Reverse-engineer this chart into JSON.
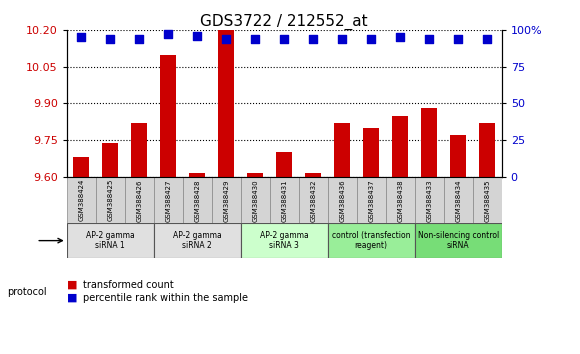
{
  "title": "GDS3722 / 212552_at",
  "samples": [
    "GSM388424",
    "GSM388425",
    "GSM388426",
    "GSM388427",
    "GSM388428",
    "GSM388429",
    "GSM388430",
    "GSM388431",
    "GSM388432",
    "GSM388436",
    "GSM388437",
    "GSM388438",
    "GSM388433",
    "GSM388434",
    "GSM388435"
  ],
  "transformed_count": [
    9.68,
    9.74,
    9.82,
    10.1,
    9.615,
    10.2,
    9.615,
    9.7,
    9.615,
    9.82,
    9.8,
    9.85,
    9.88,
    9.77,
    9.82
  ],
  "percentile_rank": [
    95,
    94,
    94,
    97,
    96,
    94,
    94,
    94,
    94,
    94,
    94,
    95,
    94,
    94,
    94
  ],
  "ylim_left": [
    9.6,
    10.2
  ],
  "ylim_right": [
    0,
    100
  ],
  "yticks_left": [
    9.6,
    9.75,
    9.9,
    10.05,
    10.2
  ],
  "yticks_right": [
    0,
    25,
    50,
    75,
    100
  ],
  "bar_color": "#cc0000",
  "dot_color": "#0000cc",
  "groups": [
    {
      "label": "AP-2 gamma\nsiRNA 1",
      "indices": [
        0,
        1,
        2
      ],
      "bg": "#e0e0e0"
    },
    {
      "label": "AP-2 gamma\nsiRNA 2",
      "indices": [
        3,
        4,
        5
      ],
      "bg": "#e0e0e0"
    },
    {
      "label": "AP-2 gamma\nsiRNA 3",
      "indices": [
        6,
        7,
        8
      ],
      "bg": "#ccffcc"
    },
    {
      "label": "control (transfection\nreagent)",
      "indices": [
        9,
        10,
        11
      ],
      "bg": "#99ee99"
    },
    {
      "label": "Non-silencing control\nsiRNA",
      "indices": [
        12,
        13,
        14
      ],
      "bg": "#77dd77"
    }
  ],
  "protocol_label": "protocol",
  "legend_bar_label": "transformed count",
  "legend_dot_label": "percentile rank within the sample",
  "bg_color": "#ffffff",
  "left_axis_color": "#cc0000",
  "right_axis_color": "#0000cc",
  "title_fontsize": 11,
  "tick_fontsize": 8,
  "bar_width": 0.55,
  "dot_size": 35,
  "sample_box_color": "#d4d4d4",
  "grid_color": "#000000",
  "grid_linestyle": "dotted",
  "grid_lw": 0.8
}
